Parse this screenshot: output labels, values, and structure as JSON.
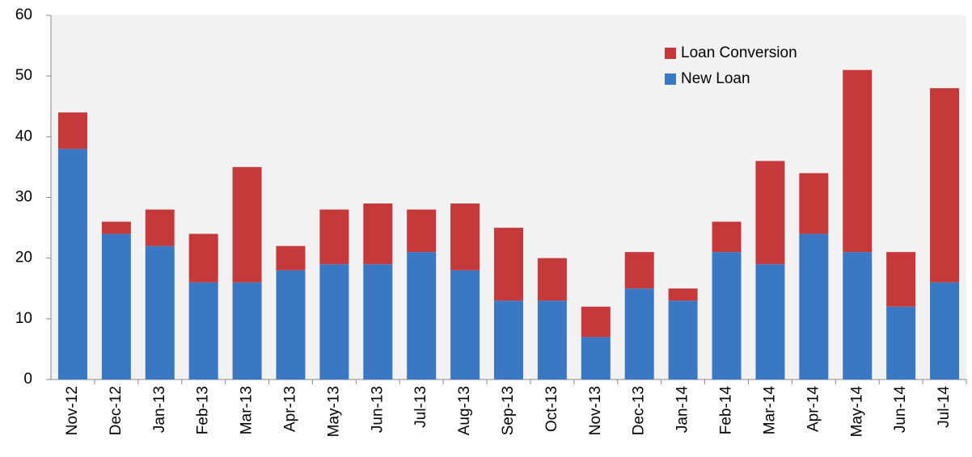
{
  "chart_data": {
    "type": "stacked_bar",
    "categories": [
      "Nov-12",
      "Dec-12",
      "Jan-13",
      "Feb-13",
      "Mar-13",
      "Apr-13",
      "May-13",
      "Jun-13",
      "Jul-13",
      "Aug-13",
      "Sep-13",
      "Oct-13",
      "Nov-13",
      "Dec-13",
      "Jan-14",
      "Feb-14",
      "Mar-14",
      "Apr-14",
      "May-14",
      "Jun-14",
      "Jul-14"
    ],
    "series": [
      {
        "name": "New Loan",
        "color": "#3a78c3",
        "values": [
          38,
          24,
          22,
          16,
          16,
          18,
          19,
          19,
          21,
          18,
          13,
          13,
          7,
          15,
          13,
          21,
          19,
          24,
          21,
          12,
          16
        ]
      },
      {
        "name": "Loan Conversion",
        "color": "#c5393a",
        "values": [
          6,
          2,
          6,
          8,
          19,
          4,
          9,
          10,
          7,
          11,
          12,
          7,
          5,
          6,
          2,
          5,
          17,
          10,
          30,
          9,
          32
        ]
      }
    ],
    "ylim": [
      0,
      60
    ],
    "yticks": [
      0,
      10,
      20,
      30,
      40,
      50,
      60
    ],
    "legend": "upper right"
  }
}
